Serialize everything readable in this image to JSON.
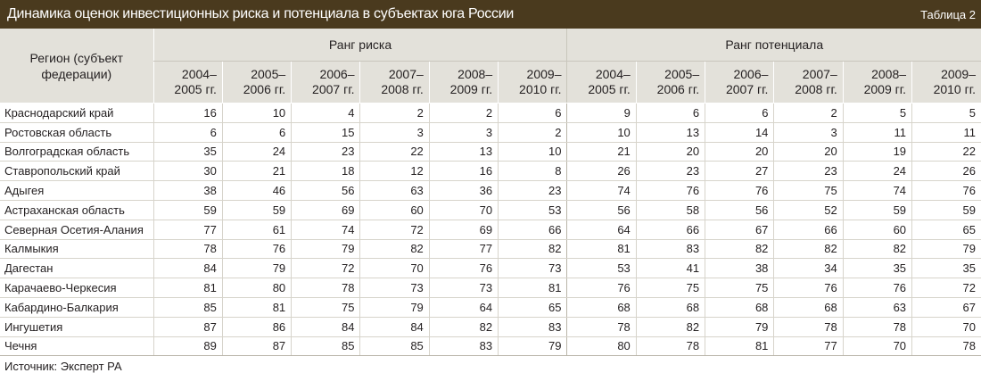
{
  "header": {
    "title": "Динамика оценок инвестиционных риска и потенциала в субъектах юга России",
    "table_number": "Таблица 2"
  },
  "table": {
    "region_header_line1": "Регион (субъект",
    "region_header_line2": "федерации)",
    "group_risk": "Ранг риска",
    "group_potential": "Ранг потенциала",
    "periods": [
      {
        "line1": "2004–",
        "line2": "2005 гг."
      },
      {
        "line1": "2005–",
        "line2": "2006 гг."
      },
      {
        "line1": "2006–",
        "line2": "2007 гг."
      },
      {
        "line1": "2007–",
        "line2": "2008 гг."
      },
      {
        "line1": "2008–",
        "line2": "2009 гг."
      },
      {
        "line1": "2009–",
        "line2": "2010 гг."
      }
    ],
    "rows": [
      {
        "region": "Краснодарский край",
        "risk": [
          16,
          10,
          4,
          2,
          2,
          6
        ],
        "potential": [
          9,
          6,
          6,
          2,
          5,
          5
        ]
      },
      {
        "region": "Ростовская область",
        "risk": [
          6,
          6,
          15,
          3,
          3,
          2
        ],
        "potential": [
          10,
          13,
          14,
          3,
          11,
          11
        ]
      },
      {
        "region": "Волгоградская область",
        "risk": [
          35,
          24,
          23,
          22,
          13,
          10
        ],
        "potential": [
          21,
          20,
          20,
          20,
          19,
          22
        ]
      },
      {
        "region": "Ставропольский край",
        "risk": [
          30,
          21,
          18,
          12,
          16,
          8
        ],
        "potential": [
          26,
          23,
          27,
          23,
          24,
          26
        ]
      },
      {
        "region": "Адыгея",
        "risk": [
          38,
          46,
          56,
          63,
          36,
          23
        ],
        "potential": [
          74,
          76,
          76,
          75,
          74,
          76
        ]
      },
      {
        "region": "Астраханская область",
        "risk": [
          59,
          59,
          69,
          60,
          70,
          53
        ],
        "potential": [
          56,
          58,
          56,
          52,
          59,
          59
        ]
      },
      {
        "region": "Северная Осетия-Алания",
        "risk": [
          77,
          61,
          74,
          72,
          69,
          66
        ],
        "potential": [
          64,
          66,
          67,
          66,
          60,
          65
        ]
      },
      {
        "region": "Калмыкия",
        "risk": [
          78,
          76,
          79,
          82,
          77,
          82
        ],
        "potential": [
          81,
          83,
          82,
          82,
          82,
          79
        ]
      },
      {
        "region": "Дагестан",
        "risk": [
          84,
          79,
          72,
          70,
          76,
          73
        ],
        "potential": [
          53,
          41,
          38,
          34,
          35,
          35
        ]
      },
      {
        "region": "Карачаево-Черкесия",
        "risk": [
          81,
          80,
          78,
          73,
          73,
          81
        ],
        "potential": [
          76,
          75,
          75,
          76,
          76,
          72
        ]
      },
      {
        "region": "Кабардино-Балкария",
        "risk": [
          85,
          81,
          75,
          79,
          64,
          65
        ],
        "potential": [
          68,
          68,
          68,
          68,
          63,
          67
        ]
      },
      {
        "region": "Ингушетия",
        "risk": [
          87,
          86,
          84,
          84,
          82,
          83
        ],
        "potential": [
          78,
          82,
          79,
          78,
          78,
          70
        ]
      },
      {
        "region": "Чечня",
        "risk": [
          89,
          87,
          85,
          85,
          83,
          79
        ],
        "potential": [
          80,
          78,
          81,
          77,
          70,
          78
        ]
      }
    ]
  },
  "source": "Источник: Эксперт РА",
  "colors": {
    "title_bar": "#4a3a1e",
    "header_bg": "#e3e1da"
  }
}
